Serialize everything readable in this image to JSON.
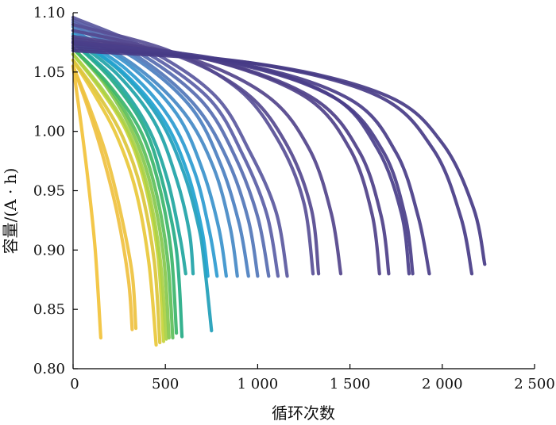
{
  "chart_data": {
    "type": "line",
    "xlabel": "循环次数",
    "ylabel": "容量/(A · h)",
    "xlim": [
      0,
      2500
    ],
    "ylim": [
      0.8,
      1.1
    ],
    "x_ticks": [
      0,
      500,
      1000,
      1500,
      2000,
      2500
    ],
    "x_tick_labels": [
      "0",
      "500",
      "1 000",
      "1 500",
      "2 000",
      "2 500"
    ],
    "y_ticks": [
      0.8,
      0.85,
      0.9,
      0.95,
      1.0,
      1.05,
      1.1
    ],
    "y_tick_labels": [
      "0.80",
      "0.85",
      "0.90",
      "0.95",
      "1.00",
      "1.05",
      "1.10"
    ],
    "grid": false,
    "legend": "none",
    "colormap": [
      "#f0c040",
      "#c7d43a",
      "#5dbf5a",
      "#21a6a0",
      "#1fa2cf",
      "#4b7fc0",
      "#5a5ea6",
      "#4a3f8a"
    ],
    "series": [
      {
        "color": "#f2c23a",
        "x": [
          0,
          40,
          80,
          120,
          150
        ],
        "y": [
          1.055,
          1.01,
          0.96,
          0.9,
          0.826
        ]
      },
      {
        "color": "#f0c040",
        "x": [
          0,
          80,
          160,
          240,
          300,
          320
        ],
        "y": [
          1.055,
          1.02,
          0.98,
          0.93,
          0.875,
          0.833
        ]
      },
      {
        "color": "#eec23e",
        "x": [
          0,
          90,
          180,
          260,
          320,
          340
        ],
        "y": [
          1.055,
          1.02,
          0.98,
          0.93,
          0.88,
          0.834
        ]
      },
      {
        "color": "#e9c83a",
        "x": [
          0,
          120,
          240,
          340,
          410,
          450
        ],
        "y": [
          1.06,
          1.03,
          0.995,
          0.95,
          0.89,
          0.82
        ]
      },
      {
        "color": "#dcc63b",
        "x": [
          0,
          140,
          270,
          370,
          440,
          470
        ],
        "y": [
          1.06,
          1.03,
          0.995,
          0.95,
          0.89,
          0.822
        ]
      },
      {
        "color": "#c7d43a",
        "x": [
          0,
          150,
          290,
          390,
          460,
          490
        ],
        "y": [
          1.065,
          1.035,
          1.0,
          0.955,
          0.895,
          0.823
        ]
      },
      {
        "color": "#a9d045",
        "x": [
          0,
          160,
          300,
          400,
          470,
          505
        ],
        "y": [
          1.065,
          1.035,
          1.0,
          0.955,
          0.895,
          0.825
        ]
      },
      {
        "color": "#86c84e",
        "x": [
          0,
          170,
          320,
          420,
          490,
          520
        ],
        "y": [
          1.07,
          1.04,
          1.0,
          0.955,
          0.895,
          0.826
        ]
      },
      {
        "color": "#5dbf5a",
        "x": [
          0,
          180,
          340,
          440,
          510,
          540
        ],
        "y": [
          1.07,
          1.04,
          1.0,
          0.955,
          0.895,
          0.826
        ]
      },
      {
        "color": "#3cb56a",
        "x": [
          0,
          190,
          360,
          460,
          530,
          560
        ],
        "y": [
          1.07,
          1.04,
          1.002,
          0.958,
          0.9,
          0.83
        ]
      },
      {
        "color": "#25ab85",
        "x": [
          0,
          200,
          380,
          480,
          560,
          590
        ],
        "y": [
          1.075,
          1.045,
          1.005,
          0.96,
          0.9,
          0.827
        ]
      },
      {
        "color": "#21a6a0",
        "x": [
          0,
          220,
          400,
          510,
          580,
          610
        ],
        "y": [
          1.075,
          1.045,
          1.005,
          0.96,
          0.91,
          0.88
        ]
      },
      {
        "color": "#1fa3a8",
        "x": [
          0,
          240,
          440,
          560,
          630,
          650
        ],
        "y": [
          1.078,
          1.048,
          1.008,
          0.96,
          0.915,
          0.88
        ]
      },
      {
        "color": "#1f9eb8",
        "x": [
          0,
          260,
          470,
          600,
          680,
          710,
          750
        ],
        "y": [
          1.08,
          1.05,
          1.01,
          0.965,
          0.92,
          0.89,
          0.832
        ]
      },
      {
        "color": "#1fa2cf",
        "x": [
          0,
          270,
          490,
          620,
          700,
          730
        ],
        "y": [
          1.08,
          1.05,
          1.01,
          0.965,
          0.915,
          0.878
        ]
      },
      {
        "color": "#2c9bd0",
        "x": [
          0,
          290,
          520,
          660,
          740,
          780
        ],
        "y": [
          1.082,
          1.052,
          1.012,
          0.965,
          0.915,
          0.878
        ]
      },
      {
        "color": "#3a93cc",
        "x": [
          0,
          310,
          560,
          700,
          790,
          830
        ],
        "y": [
          1.085,
          1.055,
          1.015,
          0.968,
          0.918,
          0.878
        ]
      },
      {
        "color": "#4589c6",
        "x": [
          0,
          330,
          600,
          760,
          850,
          890
        ],
        "y": [
          1.085,
          1.056,
          1.016,
          0.97,
          0.92,
          0.878
        ]
      },
      {
        "color": "#4b7fc0",
        "x": [
          0,
          350,
          640,
          800,
          900,
          950
        ],
        "y": [
          1.088,
          1.06,
          1.02,
          0.972,
          0.922,
          0.878
        ]
      },
      {
        "color": "#5176b8",
        "x": [
          0,
          360,
          660,
          840,
          950,
          1000
        ],
        "y": [
          1.09,
          1.062,
          1.022,
          0.975,
          0.925,
          0.878
        ]
      },
      {
        "color": "#566bb0",
        "x": [
          0,
          380,
          700,
          880,
          1000,
          1060
        ],
        "y": [
          1.092,
          1.064,
          1.025,
          0.978,
          0.928,
          0.878
        ]
      },
      {
        "color": "#5a5ea6",
        "x": [
          0,
          400,
          740,
          920,
          1050,
          1110
        ],
        "y": [
          1.094,
          1.066,
          1.027,
          0.98,
          0.93,
          0.878
        ]
      },
      {
        "color": "#5a589e",
        "x": [
          0,
          420,
          770,
          960,
          1100,
          1160
        ],
        "y": [
          1.096,
          1.068,
          1.03,
          0.982,
          0.932,
          0.878
        ]
      },
      {
        "color": "#584f96",
        "x": [
          0,
          520,
          900,
          1120,
          1250,
          1300
        ],
        "y": [
          1.09,
          1.068,
          1.035,
          0.99,
          0.94,
          0.88
        ]
      },
      {
        "color": "#55498f",
        "x": [
          0,
          540,
          940,
          1160,
          1290,
          1330
        ],
        "y": [
          1.085,
          1.065,
          1.032,
          0.988,
          0.935,
          0.88
        ]
      },
      {
        "color": "#52448b",
        "x": [
          0,
          600,
          1050,
          1280,
          1400,
          1450
        ],
        "y": [
          1.08,
          1.063,
          1.03,
          0.985,
          0.93,
          0.88
        ]
      },
      {
        "color": "#4f4189",
        "x": [
          0,
          700,
          1250,
          1500,
          1620,
          1660
        ],
        "y": [
          1.078,
          1.062,
          1.03,
          0.985,
          0.93,
          0.88
        ]
      },
      {
        "color": "#4d3f88",
        "x": [
          0,
          750,
          1300,
          1550,
          1670,
          1710
        ],
        "y": [
          1.076,
          1.06,
          1.028,
          0.983,
          0.928,
          0.88
        ]
      },
      {
        "color": "#4a3f8a",
        "x": [
          0,
          820,
          1400,
          1650,
          1780,
          1820
        ],
        "y": [
          1.075,
          1.06,
          1.03,
          0.985,
          0.93,
          0.88
        ]
      },
      {
        "color": "#4a3e89",
        "x": [
          0,
          850,
          1420,
          1680,
          1800,
          1840
        ],
        "y": [
          1.074,
          1.058,
          1.028,
          0.983,
          0.928,
          0.88
        ]
      },
      {
        "color": "#493d88",
        "x": [
          0,
          900,
          1500,
          1750,
          1870,
          1930
        ],
        "y": [
          1.072,
          1.057,
          1.027,
          0.982,
          0.928,
          0.88
        ]
      },
      {
        "color": "#483c87",
        "x": [
          0,
          950,
          1650,
          1950,
          2100,
          2160
        ],
        "y": [
          1.07,
          1.058,
          1.03,
          0.985,
          0.928,
          0.88
        ]
      },
      {
        "color": "#473b86",
        "x": [
          0,
          1000,
          1700,
          2000,
          2170,
          2230
        ],
        "y": [
          1.068,
          1.057,
          1.03,
          0.99,
          0.935,
          0.888
        ]
      }
    ]
  }
}
